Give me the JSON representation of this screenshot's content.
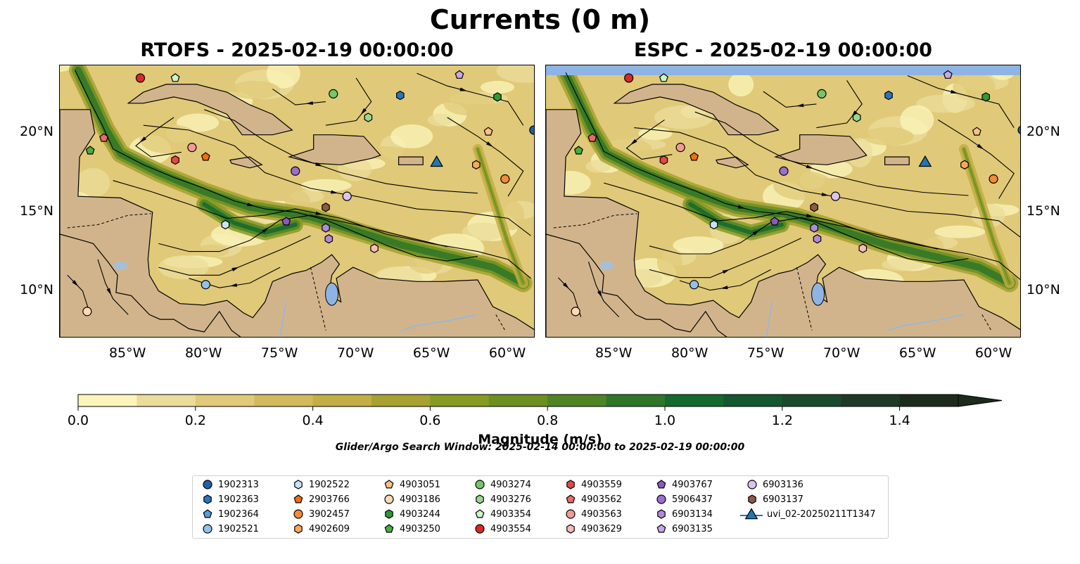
{
  "title": "Currents (0 m)",
  "panels": [
    {
      "title": "RTOFS - 2025-02-19 00:00:00",
      "model": "RTOFS"
    },
    {
      "title": "ESPC - 2025-02-19 00:00:00",
      "model": "ESPC"
    }
  ],
  "map": {
    "lon_range": [
      -89.5,
      -58.2
    ],
    "lat_range": [
      7.0,
      24.3
    ],
    "lon_ticks": [
      {
        "value": -85,
        "label": "85°W"
      },
      {
        "value": -80,
        "label": "80°W"
      },
      {
        "value": -75,
        "label": "75°W"
      },
      {
        "value": -70,
        "label": "70°W"
      },
      {
        "value": -65,
        "label": "65°W"
      },
      {
        "value": -60,
        "label": "60°W"
      }
    ],
    "lat_ticks": [
      {
        "value": 20,
        "label": "20°N"
      },
      {
        "value": 15,
        "label": "15°N"
      },
      {
        "value": 10,
        "label": "10°N"
      }
    ],
    "land_color": "#d2b48c",
    "lake_color": "#8eb4e3"
  },
  "colorbar": {
    "label": "Magnitude (m/s)",
    "min": 0.0,
    "max": 1.5,
    "step": 0.1,
    "extend": "max",
    "ticks": [
      "0.0",
      "0.2",
      "0.4",
      "0.6",
      "0.8",
      "1.0",
      "1.2",
      "1.4"
    ],
    "colors": [
      "#fbf5bc",
      "#ecdc9a",
      "#e0c978",
      "#d4b95c",
      "#c2ae44",
      "#a6a130",
      "#879a22",
      "#6c8f20",
      "#4f8424",
      "#2f7628",
      "#126a2c",
      "#13582e",
      "#1a4a2c",
      "#1d3a26",
      "#1c2c1c"
    ]
  },
  "search_window": "Glider/Argo Search Window: 2025-02-14 00:00:00 to 2025-02-19 00:00:00",
  "legend": [
    {
      "id": "1902313",
      "marker": "circle",
      "color": "#1f62a8"
    },
    {
      "id": "1902363",
      "marker": "hexagon",
      "color": "#2a73c2"
    },
    {
      "id": "1902364",
      "marker": "pentagon",
      "color": "#5b9ad6"
    },
    {
      "id": "1902521",
      "marker": "circle",
      "color": "#8fc1ea"
    },
    {
      "id": "1902522",
      "marker": "hexagon",
      "color": "#c8e3f8"
    },
    {
      "id": "2903766",
      "marker": "pentagon",
      "color": "#f06d10"
    },
    {
      "id": "3902457",
      "marker": "circle",
      "color": "#f58b35"
    },
    {
      "id": "4902609",
      "marker": "hexagon",
      "color": "#f9a95c"
    },
    {
      "id": "4903051",
      "marker": "pentagon",
      "color": "#fbbf88"
    },
    {
      "id": "4903186",
      "marker": "circle",
      "color": "#fdd9b5"
    },
    {
      "id": "4903244",
      "marker": "hexagon",
      "color": "#2e9a34"
    },
    {
      "id": "4903250",
      "marker": "pentagon",
      "color": "#45b040"
    },
    {
      "id": "4903274",
      "marker": "circle",
      "color": "#74c66a"
    },
    {
      "id": "4903276",
      "marker": "hexagon",
      "color": "#98d88e"
    },
    {
      "id": "4903354",
      "marker": "pentagon",
      "color": "#ccf5c4"
    },
    {
      "id": "4903554",
      "marker": "circle",
      "color": "#d62a26"
    },
    {
      "id": "4903559",
      "marker": "hexagon",
      "color": "#e04a44"
    },
    {
      "id": "4903562",
      "marker": "pentagon",
      "color": "#ea6a66"
    },
    {
      "id": "4903563",
      "marker": "circle",
      "color": "#f29a98"
    },
    {
      "id": "4903629",
      "marker": "hexagon",
      "color": "#f7bcba"
    },
    {
      "id": "4903767",
      "marker": "pentagon",
      "color": "#8a5ac2"
    },
    {
      "id": "5906437",
      "marker": "circle",
      "color": "#9b6fcf"
    },
    {
      "id": "6903134",
      "marker": "hexagon",
      "color": "#b08ad8"
    },
    {
      "id": "6903135",
      "marker": "pentagon",
      "color": "#c7a9e6"
    },
    {
      "id": "6903136",
      "marker": "circle",
      "color": "#dcc4f0"
    },
    {
      "id": "6903137",
      "marker": "hexagon",
      "color": "#8c5a44"
    },
    {
      "id": "uvi_02-20250211T1347",
      "marker": "triangle",
      "color": "#1f77b4"
    }
  ],
  "floats": [
    {
      "id": "4903554",
      "lon": -84.2,
      "lat": 23.5
    },
    {
      "id": "4903354",
      "lon": -81.9,
      "lat": 23.5
    },
    {
      "id": "6903135",
      "lon": -63.2,
      "lat": 23.7
    },
    {
      "id": "1902363",
      "lon": -67.1,
      "lat": 22.4
    },
    {
      "id": "4903274",
      "lon": -71.5,
      "lat": 22.5
    },
    {
      "id": "4903244",
      "lon": -60.7,
      "lat": 22.3
    },
    {
      "id": "4903276",
      "lon": -69.2,
      "lat": 21.0
    },
    {
      "id": "1902313",
      "lon": -58.3,
      "lat": 20.2
    },
    {
      "id": "4903051",
      "lon": -61.3,
      "lat": 20.1
    },
    {
      "id": "4903562",
      "lon": -86.6,
      "lat": 19.7
    },
    {
      "id": "4903250",
      "lon": -87.5,
      "lat": 18.9
    },
    {
      "id": "4903563",
      "lon": -80.8,
      "lat": 19.1
    },
    {
      "id": "2903766",
      "lon": -79.9,
      "lat": 18.5
    },
    {
      "id": "4903559",
      "lon": -81.9,
      "lat": 18.3
    },
    {
      "id": "uvi_02-20250211T1347",
      "lon": -64.7,
      "lat": 18.2
    },
    {
      "id": "4902609",
      "lon": -62.1,
      "lat": 18.0
    },
    {
      "id": "5906437",
      "lon": -74.0,
      "lat": 17.6
    },
    {
      "id": "3902457",
      "lon": -60.2,
      "lat": 17.1
    },
    {
      "id": "6903136",
      "lon": -70.6,
      "lat": 16.0
    },
    {
      "id": "6903137",
      "lon": -72.0,
      "lat": 15.3
    },
    {
      "id": "1902522",
      "lon": -78.6,
      "lat": 14.2
    },
    {
      "id": "4903767",
      "lon": -74.6,
      "lat": 14.4
    },
    {
      "id": "6903134",
      "lon": -72.0,
      "lat": 14.0
    },
    {
      "id": "6903134",
      "lon": -71.8,
      "lat": 13.3
    },
    {
      "id": "4903629",
      "lon": -68.8,
      "lat": 12.7
    },
    {
      "id": "1902521",
      "lon": -79.9,
      "lat": 10.4
    },
    {
      "id": "4903186",
      "lon": -87.7,
      "lat": 8.7
    }
  ]
}
